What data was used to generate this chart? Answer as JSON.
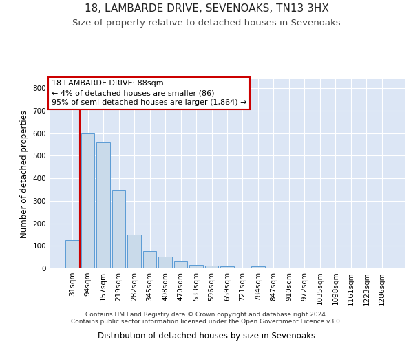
{
  "title": "18, LAMBARDE DRIVE, SEVENOAKS, TN13 3HX",
  "subtitle": "Size of property relative to detached houses in Sevenoaks",
  "xlabel": "Distribution of detached houses by size in Sevenoaks",
  "ylabel": "Number of detached properties",
  "bar_values": [
    125,
    600,
    558,
    348,
    150,
    77,
    52,
    30,
    15,
    13,
    8,
    0,
    8,
    0,
    0,
    0,
    0,
    0,
    0,
    0,
    0
  ],
  "bar_labels": [
    "31sqm",
    "94sqm",
    "157sqm",
    "219sqm",
    "282sqm",
    "345sqm",
    "408sqm",
    "470sqm",
    "533sqm",
    "596sqm",
    "659sqm",
    "721sqm",
    "784sqm",
    "847sqm",
    "910sqm",
    "972sqm",
    "1035sqm",
    "1098sqm",
    "1161sqm",
    "1223sqm",
    "1286sqm"
  ],
  "bar_color": "#c9daea",
  "bar_edge_color": "#5b9bd5",
  "marker_line_color": "#cc0000",
  "ylim": [
    0,
    840
  ],
  "yticks": [
    0,
    100,
    200,
    300,
    400,
    500,
    600,
    700,
    800
  ],
  "background_color": "#dce6f5",
  "grid_color": "#ffffff",
  "annotation_title": "18 LAMBARDE DRIVE: 88sqm",
  "annotation_line1": "← 4% of detached houses are smaller (86)",
  "annotation_line2": "95% of semi-detached houses are larger (1,864) →",
  "annotation_box_color": "#ffffff",
  "annotation_box_edge": "#cc0000",
  "footer_line1": "Contains HM Land Registry data © Crown copyright and database right 2024.",
  "footer_line2": "Contains public sector information licensed under the Open Government Licence v3.0.",
  "title_fontsize": 11,
  "subtitle_fontsize": 9.5,
  "axis_label_fontsize": 8.5,
  "tick_fontsize": 7.5,
  "annotation_fontsize": 8,
  "footer_fontsize": 6.5
}
